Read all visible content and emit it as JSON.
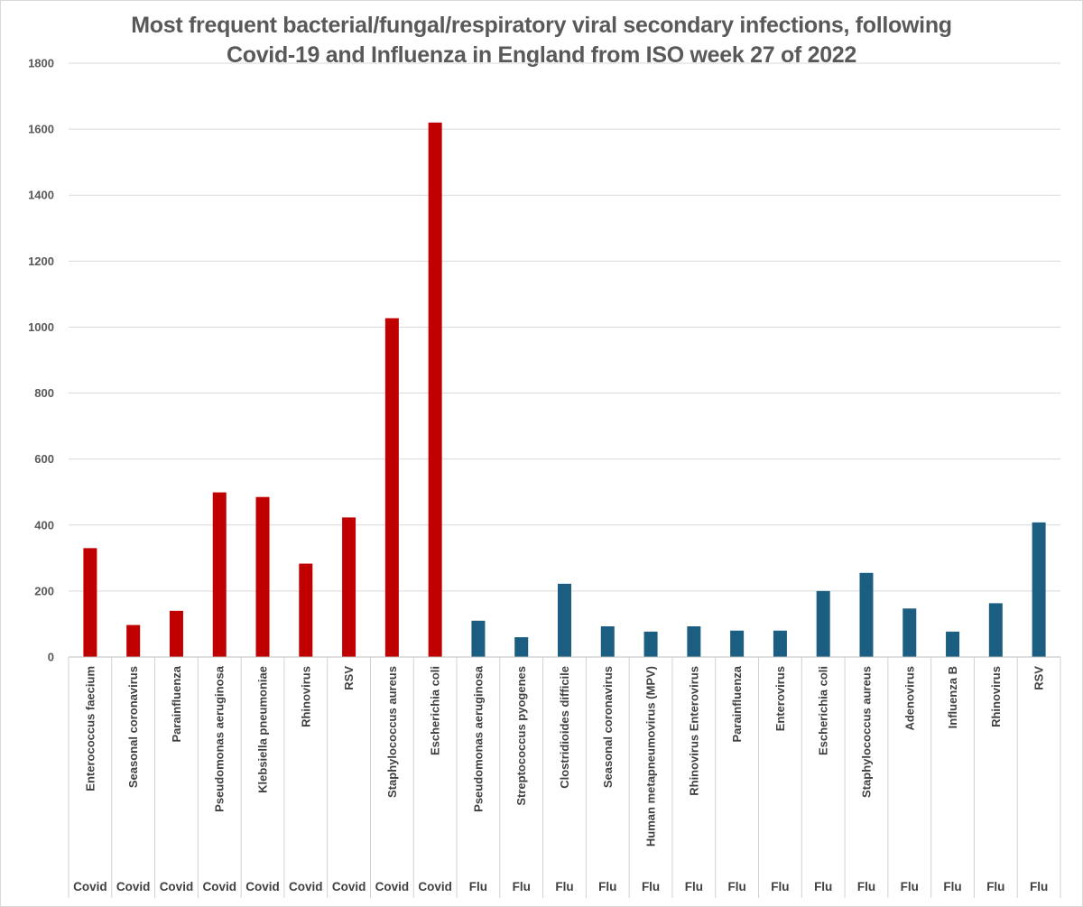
{
  "chart_data": {
    "type": "bar",
    "title_lines": [
      "Most frequent bacterial/fungal/respiratory viral secondary infections, following",
      "Covid-19 and Influenza in England from ISO week 27 of 2022"
    ],
    "xlabel": "",
    "ylabel": "",
    "ylim": [
      0,
      1800
    ],
    "yticks": [
      0,
      200,
      400,
      600,
      800,
      1000,
      1200,
      1400,
      1600,
      1800
    ],
    "grid": true,
    "legend": "none",
    "colors": {
      "Covid": "#c00000",
      "Flu": "#1b5e82"
    },
    "categories": [
      "Enterococcus faecium",
      "Seasonal coronavirus",
      "Parainfluenza",
      "Pseudomonas aeruginosa",
      "Klebsiella pneumoniae",
      "Rhinovirus",
      "RSV",
      "Staphylococcus aureus",
      "Escherichia coli",
      "Pseudomonas aeruginosa",
      "Streptococcus pyogenes",
      "Clostridioides difficile",
      "Seasonal coronavirus",
      "Human metapneumovirus (MPV)",
      "Rhinovirus Enterovirus",
      "Parainfluenza",
      "Enterovirus",
      "Escherichia coli",
      "Staphylococcus aureus",
      "Adenovirus",
      "Influenza B",
      "Rhinovirus",
      "RSV"
    ],
    "groups": [
      "Covid",
      "Covid",
      "Covid",
      "Covid",
      "Covid",
      "Covid",
      "Covid",
      "Covid",
      "Covid",
      "Flu",
      "Flu",
      "Flu",
      "Flu",
      "Flu",
      "Flu",
      "Flu",
      "Flu",
      "Flu",
      "Flu",
      "Flu",
      "Flu",
      "Flu",
      "Flu"
    ],
    "values": [
      330,
      97,
      140,
      499,
      485,
      283,
      423,
      1027,
      1620,
      110,
      60,
      222,
      93,
      77,
      93,
      80,
      80,
      200,
      255,
      147,
      77,
      163,
      408
    ]
  }
}
